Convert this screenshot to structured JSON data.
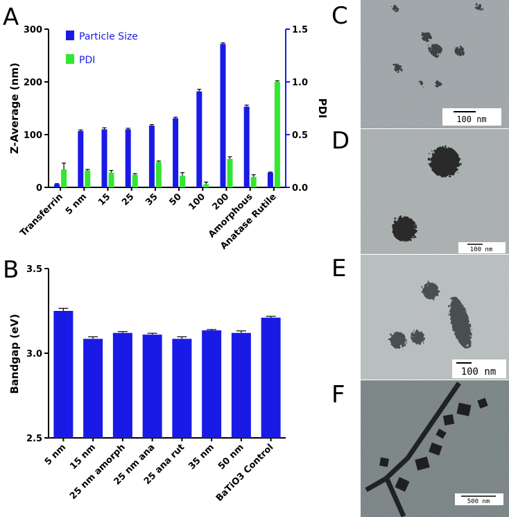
{
  "panel_letters": {
    "a": "A",
    "b": "B",
    "c": "C",
    "d": "D",
    "e": "E",
    "f": "F"
  },
  "colors": {
    "particle_size": "#1a1ae6",
    "pdi": "#33e633",
    "axis": "#000000",
    "right_axis": "#1a1ae6"
  },
  "chart_data": [
    {
      "type": "bar",
      "categories": [
        "Transferrin",
        "5 nm",
        "15",
        "25",
        "35",
        "50",
        "100",
        "200",
        "Amorphous",
        "Anatase Rutile"
      ],
      "series": [
        {
          "name": "Particle Size",
          "axis": "left",
          "values": [
            6,
            107,
            110,
            110,
            117,
            131,
            182,
            272,
            153,
            28
          ],
          "errors": [
            1,
            2,
            3,
            2,
            2,
            2,
            4,
            2,
            3,
            1
          ]
        },
        {
          "name": "PDI",
          "axis": "right",
          "values": [
            0.17,
            0.16,
            0.14,
            0.12,
            0.24,
            0.11,
            0.03,
            0.27,
            0.1,
            1.0
          ],
          "errors": [
            0.06,
            0.01,
            0.02,
            0.01,
            0.01,
            0.03,
            0.02,
            0.02,
            0.02,
            0.01
          ]
        }
      ],
      "ylabel": "Z-Average (nm)",
      "ylabel_right": "PDI",
      "ylim": [
        0,
        300
      ],
      "ylim_right": [
        0,
        1.5
      ],
      "yticks": [
        "0",
        "100",
        "200",
        "300"
      ],
      "yticks_right": [
        "0.0",
        "0.5",
        "1.0",
        "1.5"
      ],
      "legend_position": "top-left"
    },
    {
      "type": "bar",
      "categories": [
        "5 nm",
        "15 nm",
        "25 nm amorph",
        "25 nm ana",
        "25 ana rut",
        "35 nm",
        "50 nm",
        "BaTiO3 Control"
      ],
      "series": [
        {
          "values": [
            3.25,
            3.085,
            3.12,
            3.11,
            3.085,
            3.135,
            3.12,
            3.21
          ],
          "errors": [
            0.015,
            0.012,
            0.008,
            0.008,
            0.012,
            0.005,
            0.012,
            0.008
          ]
        }
      ],
      "ylabel": "Bandgap (eV)",
      "ylim": [
        2.5,
        3.5
      ],
      "yticks": [
        "2.5",
        "3.0",
        "3.5"
      ]
    }
  ],
  "micrographs": [
    {
      "panel": "C",
      "scale_label": "100 nm"
    },
    {
      "panel": "D",
      "scale_label": "100 nm"
    },
    {
      "panel": "E",
      "scale_label": "100 nm"
    },
    {
      "panel": "F",
      "scale_label": "500 nm"
    }
  ]
}
